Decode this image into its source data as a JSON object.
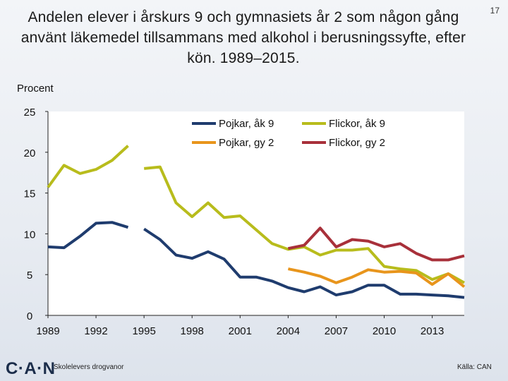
{
  "slide": {
    "title": "Andelen elever i årskurs 9 och gymnasiets år 2 som någon gång använt läkemedel tillsammans med alkohol i berusningssyfte, efter kön.  1989–2015.",
    "page_number": "17",
    "logo_text": "C·A·N",
    "footer_left": "Skolelevers drogvanor",
    "footer_right": "Källa: CAN"
  },
  "chart_data": {
    "type": "line",
    "title": "",
    "xlabel": "",
    "ylabel": "Procent",
    "xlim": [
      1989,
      2015
    ],
    "ylim": [
      0,
      25
    ],
    "xticks": [
      1989,
      1992,
      1995,
      1998,
      2001,
      2004,
      2007,
      2010,
      2013
    ],
    "xtick_labels": [
      "1989",
      "1992",
      "1995",
      "1998",
      "2001",
      "2004",
      "2007",
      "2010",
      "2013"
    ],
    "yticks": [
      0,
      5,
      10,
      15,
      20,
      25
    ],
    "ytick_labels": [
      "0",
      "5",
      "10",
      "15",
      "20",
      "25"
    ],
    "legend": "top-right",
    "series": [
      {
        "name": "Pojkar, åk 9",
        "color": "#1f3c6e",
        "segments": [
          {
            "x": [
              1989,
              1990,
              1991,
              1992,
              1993,
              1994
            ],
            "y": [
              8.4,
              8.3,
              9.7,
              11.3,
              11.4,
              10.8
            ]
          },
          {
            "x": [
              1995,
              1996,
              1997,
              1998,
              1999,
              2000,
              2001,
              2002,
              2003,
              2004,
              2005,
              2006,
              2007,
              2008,
              2009,
              2010,
              2011,
              2012,
              2013,
              2014,
              2015
            ],
            "y": [
              10.6,
              9.3,
              7.4,
              7.0,
              7.8,
              6.9,
              4.7,
              4.7,
              4.2,
              3.4,
              2.9,
              3.5,
              2.5,
              2.9,
              3.7,
              3.7,
              2.6,
              2.6,
              2.5,
              2.4,
              2.2
            ]
          }
        ]
      },
      {
        "name": "Flickor, åk 9",
        "color": "#b8bc1c",
        "segments": [
          {
            "x": [
              1989,
              1990,
              1991,
              1992,
              1993,
              1994
            ],
            "y": [
              15.7,
              18.4,
              17.4,
              17.9,
              19.0,
              20.8
            ]
          },
          {
            "x": [
              1995,
              1996,
              1997,
              1998,
              1999,
              2000,
              2001,
              2002,
              2003,
              2004,
              2005,
              2006,
              2007,
              2008,
              2009,
              2010,
              2011,
              2012,
              2013,
              2014,
              2015
            ],
            "y": [
              18.0,
              18.2,
              13.8,
              12.1,
              13.8,
              12.0,
              12.2,
              10.5,
              8.8,
              8.1,
              8.4,
              7.4,
              8.0,
              8.0,
              8.2,
              6.0,
              5.7,
              5.5,
              4.4,
              5.1,
              4.0
            ]
          }
        ]
      },
      {
        "name": "Pojkar, gy 2",
        "color": "#e8951c",
        "segments": [
          {
            "x": [
              2004,
              2005,
              2006,
              2007,
              2008,
              2009,
              2010,
              2011,
              2012,
              2013,
              2014,
              2015
            ],
            "y": [
              5.7,
              5.3,
              4.8,
              4.0,
              4.7,
              5.6,
              5.3,
              5.4,
              5.2,
              3.8,
              5.1,
              3.5
            ]
          }
        ]
      },
      {
        "name": "Flickor, gy 2",
        "color": "#a8303a",
        "segments": [
          {
            "x": [
              2004,
              2005,
              2006,
              2007,
              2008,
              2009,
              2010,
              2011,
              2012,
              2013,
              2014,
              2015
            ],
            "y": [
              8.2,
              8.6,
              10.7,
              8.4,
              9.3,
              9.1,
              8.4,
              8.8,
              7.6,
              6.8,
              6.8,
              7.3
            ]
          }
        ]
      }
    ]
  }
}
